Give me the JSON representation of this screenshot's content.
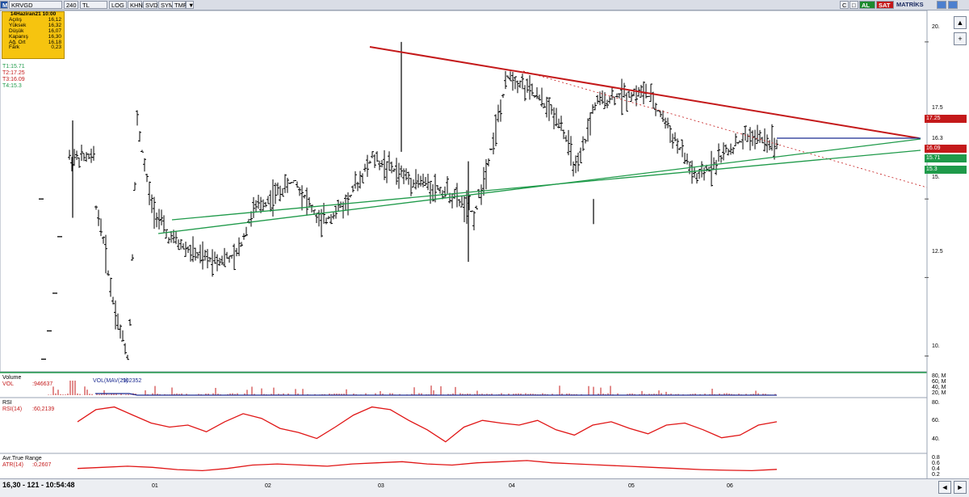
{
  "toolbar": {
    "logo": "M",
    "symbol": "KRVGD",
    "period": "240",
    "currency": "TL",
    "buttons": [
      "LOG",
      "KHN",
      "SVD",
      "SYM",
      "TMP",
      "▼"
    ],
    "right_icons": [
      "C",
      "□"
    ],
    "buy_label": "AL",
    "sell_label": "SAT",
    "brand": "MATRİKS"
  },
  "infobox": {
    "title": "14Haziran21 10:00",
    "rows": [
      {
        "label": "Açılış",
        "value": "16,12"
      },
      {
        "label": "Yüksek",
        "value": "16,32"
      },
      {
        "label": "Düşük",
        "value": "16,07"
      },
      {
        "label": "Kapanış",
        "value": "16,30"
      },
      {
        "label": "Ağ. Ort",
        "value": "16,18"
      },
      {
        "label": "Fark",
        "value": "0,23"
      }
    ]
  },
  "target_legend": [
    {
      "label": "T1:15.71",
      "color": "#1f9a4a"
    },
    {
      "label": "T2:17.25",
      "color": "#c4191a"
    },
    {
      "label": "T3:16.09",
      "color": "#c4191a"
    },
    {
      "label": "T4:15.3",
      "color": "#1f9a4a"
    }
  ],
  "price_tags": [
    {
      "label": "17.25",
      "value": 17.25,
      "color": "#c4191a"
    },
    {
      "label": "16.09",
      "value": 16.09,
      "color": "#c4191a"
    },
    {
      "label": "15.71",
      "value": 15.71,
      "color": "#1f9a4a"
    },
    {
      "label": "15.3",
      "value": 15.3,
      "color": "#1f9a4a"
    }
  ],
  "indicator_panels": {
    "volume": {
      "title": "Volume",
      "vol_label": "VOL",
      "vol_value": ":946637",
      "mav_label": "VOL(MAV(21)",
      "mav_value": ":902352",
      "ticks": [
        "80, M",
        "60, M",
        "40, M",
        "20, M"
      ]
    },
    "rsi": {
      "title": "RSI",
      "label": "RSI(14)",
      "value": ":60,2139",
      "ticks": [
        "80.",
        "60.",
        "40."
      ]
    },
    "atr": {
      "title": "Avr.True Range",
      "label": "ATR(14)",
      "value": ":0,2607",
      "ticks": [
        "0.8",
        "0.6",
        "0.4",
        "0.2"
      ]
    }
  },
  "status": {
    "text": "16,30 - 121 - 10:54:48"
  },
  "chart_data": {
    "type": "ohlc",
    "symbol": "KRVGD",
    "interval": "240",
    "x_ticks": [
      "01",
      "02",
      "03",
      "04",
      "05",
      "06"
    ],
    "y_ticks": [
      10.0,
      12.5,
      15.0,
      16.3,
      17.5,
      20.0
    ],
    "y_tick_labels": [
      "10.",
      "12.5",
      "15.",
      "16.3",
      "17.5",
      "20."
    ],
    "ylim": [
      9.5,
      21.0
    ],
    "trendlines": [
      {
        "color": "#c4191a",
        "style": "solid",
        "from": 20.1,
        "to": 16.3
      },
      {
        "color": "#1f9a4a",
        "style": "solid",
        "from": 13.0,
        "to": 15.9
      },
      {
        "color": "#1f9a4a",
        "style": "solid",
        "from": 12.6,
        "to": 16.3
      },
      {
        "color": "#1a2a90",
        "style": "solid",
        "from": 16.3,
        "to": 16.3
      },
      {
        "color": "#c4191a",
        "style": "dotted",
        "from": 18.8,
        "to": 14.4
      }
    ],
    "key_prices": [
      {
        "x": 0.035,
        "y": 15.0
      },
      {
        "x": 0.045,
        "y": 13.8
      },
      {
        "x": 0.055,
        "y": 12.0
      },
      {
        "x": 0.065,
        "y": 10.8
      },
      {
        "x": 0.075,
        "y": 9.9
      },
      {
        "x": 0.085,
        "y": 17.5
      },
      {
        "x": 0.1,
        "y": 15.0
      },
      {
        "x": 0.12,
        "y": 13.8
      },
      {
        "x": 0.16,
        "y": 13.1
      },
      {
        "x": 0.2,
        "y": 13.1
      },
      {
        "x": 0.22,
        "y": 14.6
      },
      {
        "x": 0.25,
        "y": 15.2
      },
      {
        "x": 0.27,
        "y": 15.6
      },
      {
        "x": 0.3,
        "y": 14.2
      },
      {
        "x": 0.33,
        "y": 14.9
      },
      {
        "x": 0.36,
        "y": 16.3
      },
      {
        "x": 0.4,
        "y": 15.7
      },
      {
        "x": 0.45,
        "y": 15.2
      },
      {
        "x": 0.48,
        "y": 14.5
      },
      {
        "x": 0.5,
        "y": 16.7
      },
      {
        "x": 0.52,
        "y": 19.0
      },
      {
        "x": 0.55,
        "y": 18.3
      },
      {
        "x": 0.58,
        "y": 17.5
      },
      {
        "x": 0.6,
        "y": 15.8
      },
      {
        "x": 0.62,
        "y": 18.0
      },
      {
        "x": 0.65,
        "y": 18.3
      },
      {
        "x": 0.68,
        "y": 18.4
      },
      {
        "x": 0.7,
        "y": 17.6
      },
      {
        "x": 0.74,
        "y": 15.6
      },
      {
        "x": 0.77,
        "y": 16.4
      },
      {
        "x": 0.8,
        "y": 17.0
      },
      {
        "x": 0.83,
        "y": 16.8
      },
      {
        "x": 0.86,
        "y": 16.4
      },
      {
        "x": 0.89,
        "y": 15.9
      },
      {
        "x": 0.92,
        "y": 15.8
      },
      {
        "x": 0.95,
        "y": 15.9
      },
      {
        "x": 1.0,
        "y": 16.3
      }
    ],
    "rsi_values": [
      60,
      78,
      82,
      70,
      58,
      52,
      55,
      45,
      60,
      72,
      65,
      50,
      44,
      35,
      52,
      70,
      82,
      78,
      62,
      48,
      30,
      52,
      62,
      58,
      55,
      62,
      48,
      40,
      55,
      60,
      50,
      42,
      55,
      58,
      48,
      36,
      40,
      55,
      60
    ],
    "atr_values": [
      0.3,
      0.35,
      0.4,
      0.35,
      0.25,
      0.2,
      0.3,
      0.45,
      0.5,
      0.45,
      0.4,
      0.5,
      0.55,
      0.6,
      0.5,
      0.45,
      0.55,
      0.6,
      0.65,
      0.55,
      0.5,
      0.45,
      0.4,
      0.35,
      0.3,
      0.25,
      0.22,
      0.2,
      0.26
    ]
  }
}
